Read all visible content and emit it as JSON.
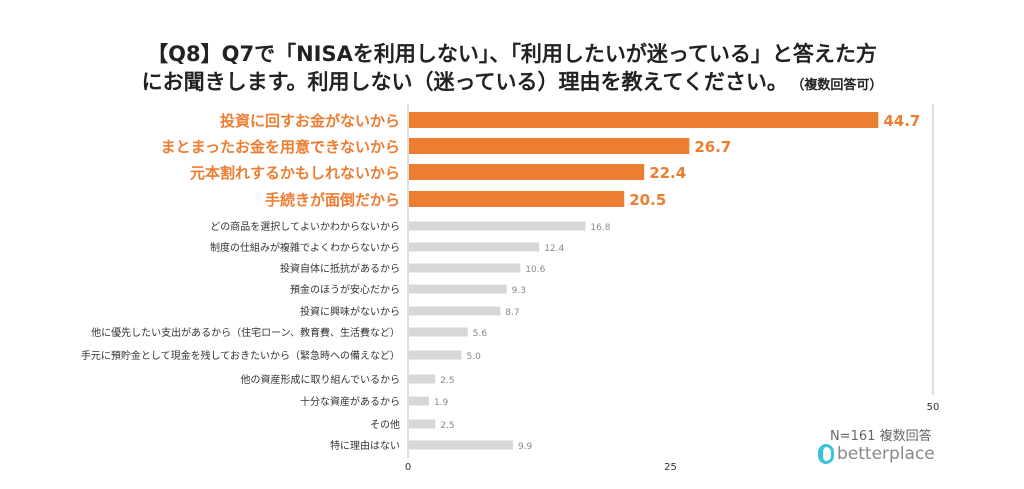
{
  "chart_data": {
    "type": "bar",
    "orientation": "horizontal",
    "title_line1": "【Q8】Q7で「NISAを利用しない」、「利用したいが迷っている」と答えた方",
    "title_line2": "にお聞きします。利用しない（迷っている）理由を教えてください。",
    "title_note": "（複数回答可）",
    "categories": [
      "投資に回すお金がないから",
      "まとまったお金を用意できないから",
      "元本割れするかもしれないから",
      "手続きが面倒だから",
      "どの商品を選択してよいかわからないから",
      "制度の仕組みが複雑でよくわからないから",
      "投資自体に抵抗があるから",
      "預金のほうが安心だから",
      "投資に興味がないから",
      "他に優先したい支出があるから（住宅ローン、教育費、生活費など）",
      "手元に預貯金として現金を残しておきたいから（緊急時への備えなど）",
      "他の資産形成に取り組んでいるから",
      "十分な資産があるから",
      "その他",
      "特に理由はない"
    ],
    "values": [
      44.7,
      26.7,
      22.4,
      20.5,
      16.8,
      12.4,
      10.6,
      9.3,
      8.7,
      5.6,
      5.0,
      2.5,
      1.9,
      2.5,
      9.9
    ],
    "highlighted_count": 4,
    "xlim": [
      0,
      50
    ],
    "xticks": [
      0,
      25,
      50
    ],
    "grid": false,
    "colors": {
      "highlight": "#ed7d31",
      "normal": "#d9d6d6",
      "highlight_label": "#ed7d31",
      "normal_label": "#333333"
    },
    "note": "N=161  複数回答"
  },
  "brand": "betterplace"
}
